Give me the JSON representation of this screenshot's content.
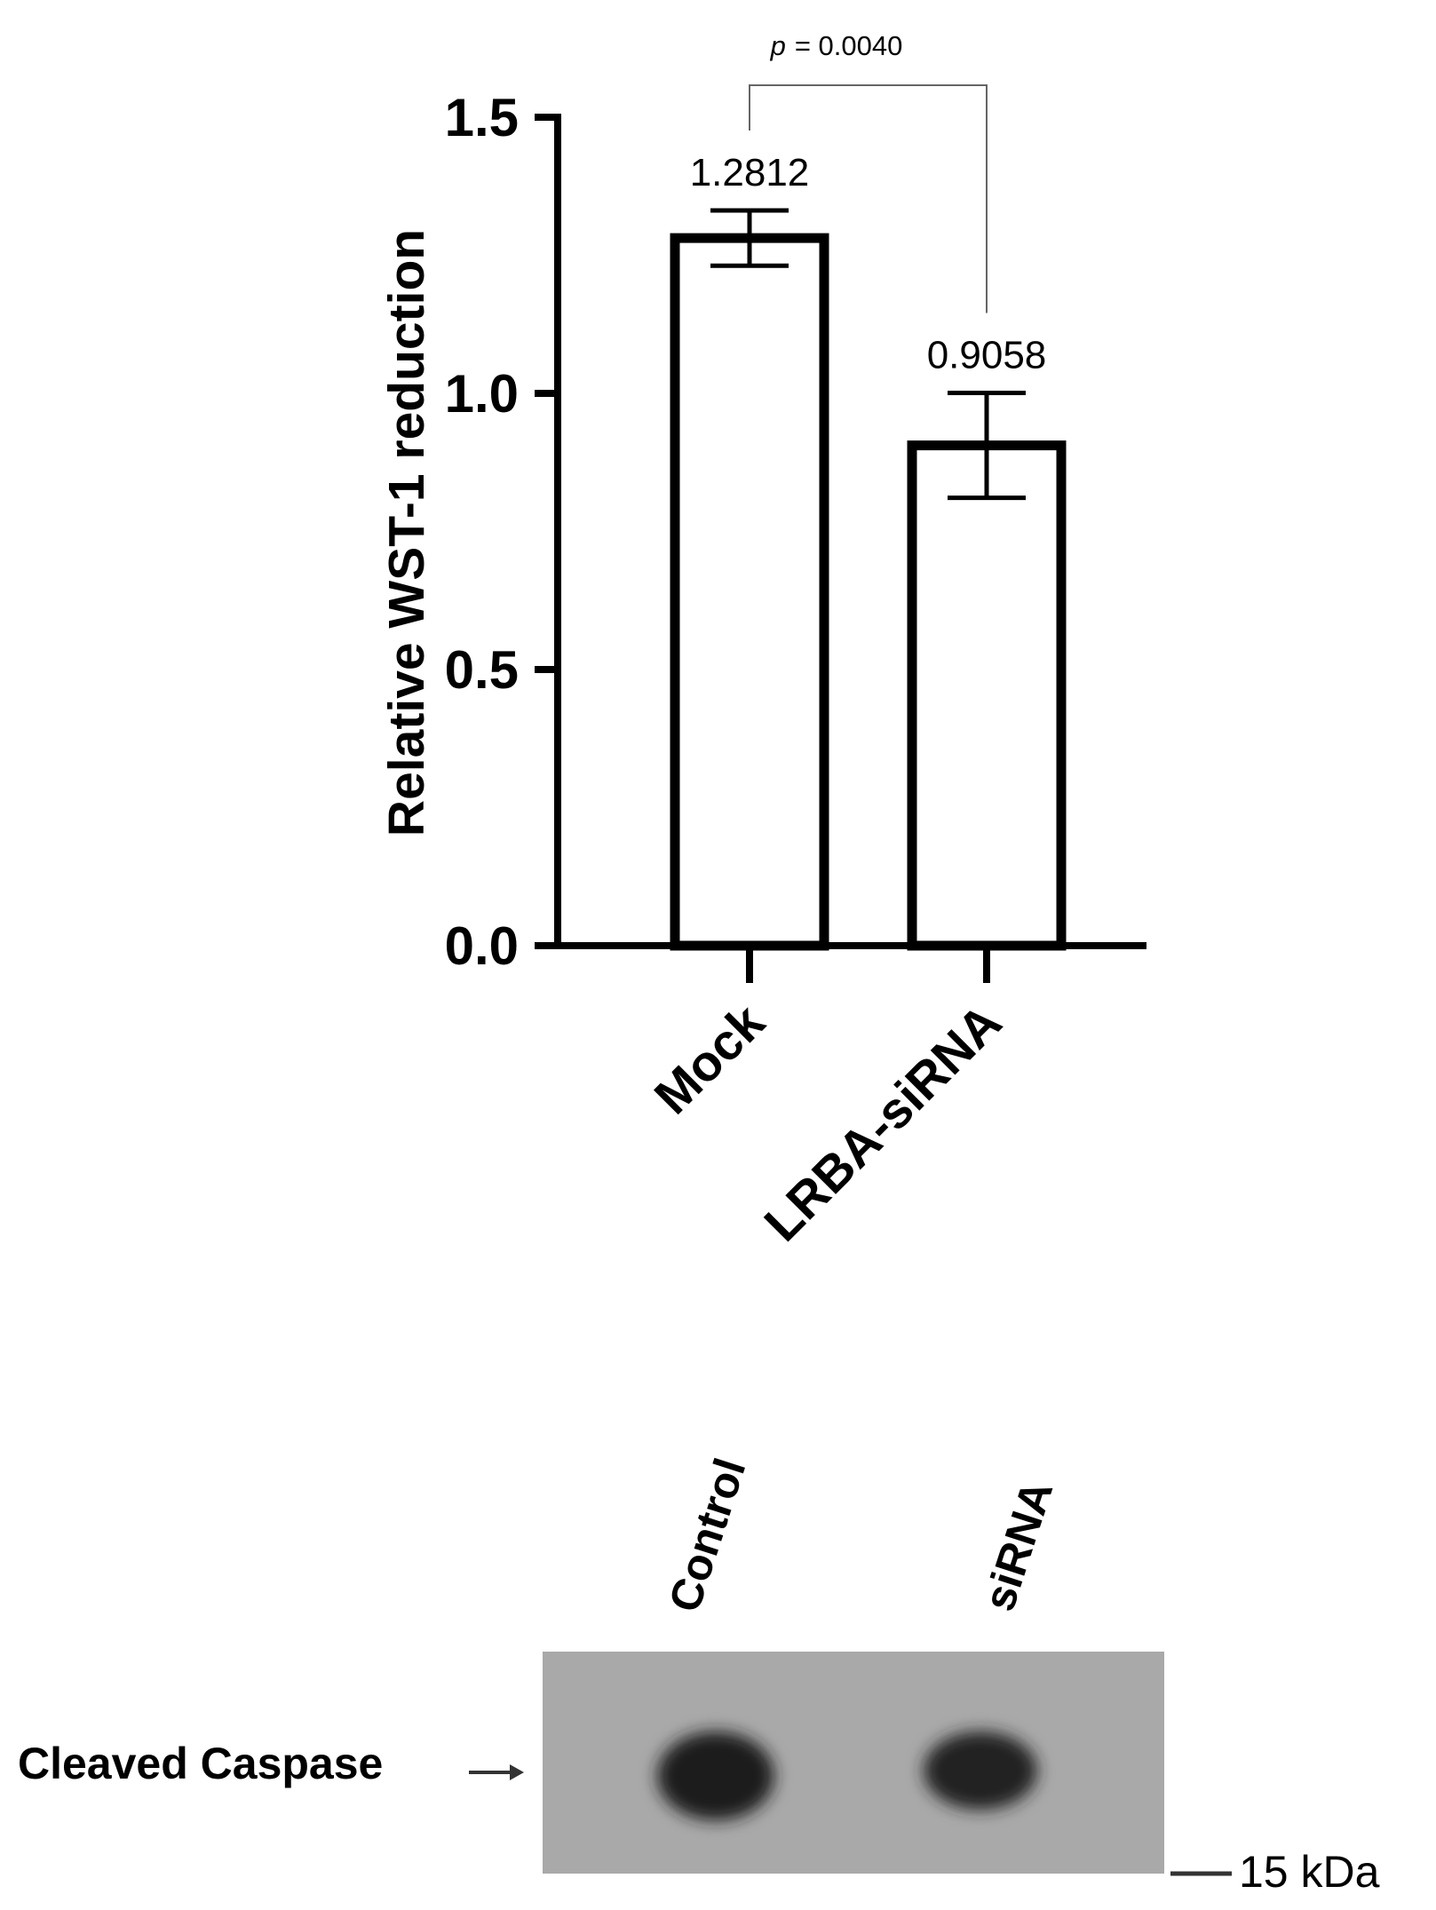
{
  "chart_data": {
    "type": "bar",
    "y_label": "Relative WST-1 reduction",
    "categories": [
      "Mock",
      "LRBA-siRNA"
    ],
    "values": [
      1.2812,
      0.9058
    ],
    "errors": [
      0.05,
      0.095
    ],
    "annotation": {
      "symbol": "p",
      "text": "= 0.0040"
    },
    "color": "#ffffff",
    "ylim": [
      0,
      1.5
    ],
    "yticks": [
      {
        "value": 0,
        "label": "0.0"
      },
      0.5,
      {
        "value": 1,
        "label": "1.0"
      },
      1.5
    ]
  },
  "blot": {
    "lanes": [
      "Control",
      "siRNA"
    ],
    "band_label": "Cleaved Caspase",
    "marker": "15 kDa"
  }
}
